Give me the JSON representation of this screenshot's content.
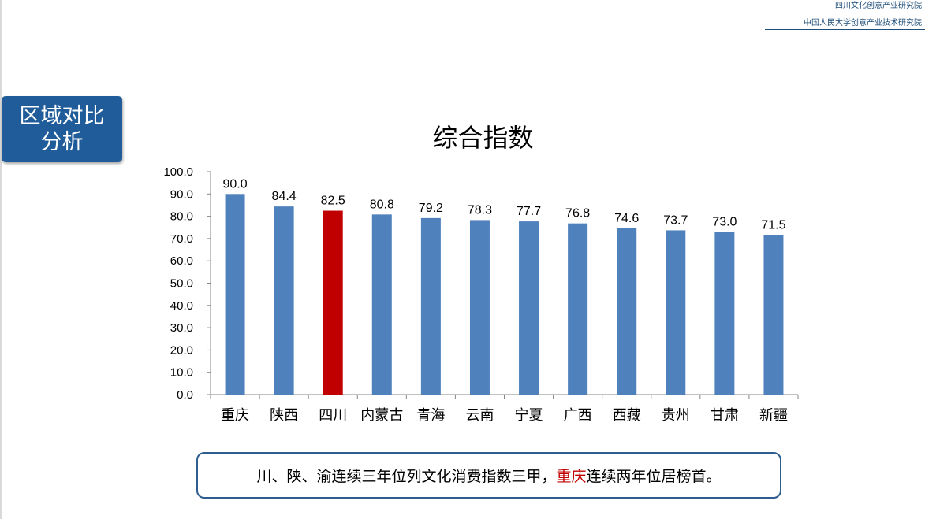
{
  "header": {
    "institute_1": "四川文化创意产业研究院",
    "institute_2": "中国人民大学创意产业技术研究院"
  },
  "section_badge": {
    "line1": "区域对比",
    "line2": "分析"
  },
  "chart_data": {
    "type": "bar",
    "title": "综合指数",
    "xlabel": "",
    "ylabel": "",
    "categories": [
      "重庆",
      "陕西",
      "四川",
      "内蒙古",
      "青海",
      "云南",
      "宁夏",
      "广西",
      "西藏",
      "贵州",
      "甘肃",
      "新疆"
    ],
    "values": [
      90.0,
      84.4,
      82.5,
      80.8,
      79.2,
      78.3,
      77.7,
      76.8,
      74.6,
      73.7,
      73.0,
      71.5
    ],
    "value_labels": [
      "90.0",
      "84.4",
      "82.5",
      "80.8",
      "79.2",
      "78.3",
      "77.7",
      "76.8",
      "74.6",
      "73.7",
      "73.0",
      "71.5"
    ],
    "ylim": [
      0,
      100
    ],
    "yticks": [
      "0.0",
      "10.0",
      "20.0",
      "30.0",
      "40.0",
      "50.0",
      "60.0",
      "70.0",
      "80.0",
      "90.0",
      "100.0"
    ],
    "grid": false,
    "legend": "none",
    "bar_color": "#4f81bd",
    "highlight_color": "#c00000",
    "highlight_category": "四川"
  },
  "note": {
    "part1": "川、陕、渝连续三年位列文化消费指数三甲，",
    "highlight": "重庆",
    "part2": "连续两年位居榜首。",
    "highlight_color": "#c00000"
  }
}
